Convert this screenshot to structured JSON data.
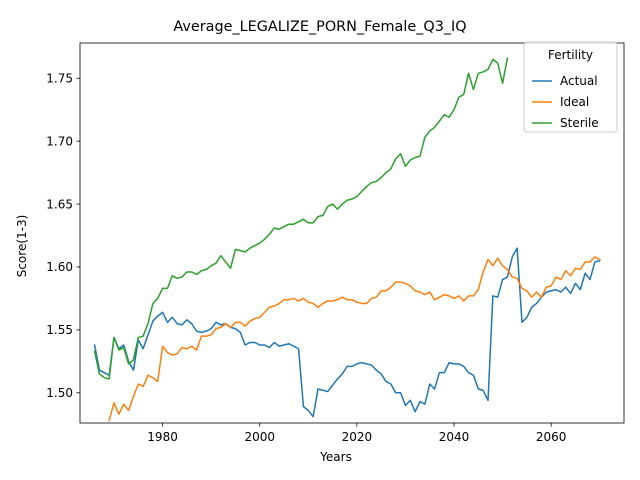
{
  "chart_data": {
    "type": "line",
    "title": "Average_LEGALIZE_PORN_Female_Q3_IQ",
    "xlabel": "Years",
    "ylabel": "Score(1-3)",
    "xlim": [
      1963,
      2075
    ],
    "ylim": [
      1.476,
      1.778
    ],
    "xticks": [
      1980,
      2000,
      2020,
      2040,
      2060
    ],
    "yticks": [
      1.5,
      1.55,
      1.6,
      1.65,
      1.7,
      1.75
    ],
    "ytick_labels": [
      "1.50",
      "1.55",
      "1.60",
      "1.65",
      "1.70",
      "1.75"
    ],
    "grid": false,
    "legend": {
      "title": "Fertility",
      "position": "top-right"
    },
    "series": [
      {
        "name": "Actual",
        "color": "#1f77b4",
        "x": [
          1966,
          1967,
          1969,
          1970,
          1971,
          1972,
          1973,
          1974,
          1975,
          1976,
          1977,
          1978,
          1979,
          1980,
          1981,
          1982,
          1983,
          1984,
          1985,
          1986,
          1987,
          1988,
          1989,
          1990,
          1991,
          1992,
          1993,
          1994,
          1995,
          1996,
          1997,
          1998,
          1999,
          2000,
          2001,
          2002,
          2003,
          2004,
          2005,
          2006,
          2007,
          2008,
          2009,
          2010,
          2011,
          2012,
          2013,
          2014,
          2015,
          2016,
          2017,
          2018,
          2019,
          2020,
          2021,
          2022,
          2023,
          2024,
          2025,
          2026,
          2027,
          2028,
          2029,
          2030,
          2031,
          2032,
          2033,
          2034,
          2035,
          2036,
          2037,
          2038,
          2039,
          2040,
          2041,
          2042,
          2043,
          2044,
          2045,
          2046,
          2047,
          2048,
          2049,
          2050,
          2051,
          2052,
          2053,
          2054,
          2055,
          2056,
          2057,
          2058,
          2059,
          2060,
          2061,
          2062,
          2063,
          2064,
          2065,
          2066,
          2067,
          2068,
          2069,
          2070
        ],
        "y": [
          1.538,
          1.518,
          1.514,
          1.544,
          1.535,
          1.538,
          1.525,
          1.518,
          1.542,
          1.535,
          1.546,
          1.557,
          1.561,
          1.564,
          1.556,
          1.56,
          1.555,
          1.554,
          1.558,
          1.555,
          1.549,
          1.548,
          1.549,
          1.551,
          1.556,
          1.554,
          1.555,
          1.552,
          1.551,
          1.548,
          1.538,
          1.54,
          1.54,
          1.538,
          1.538,
          1.536,
          1.54,
          1.537,
          1.538,
          1.539,
          1.537,
          1.535,
          1.489,
          1.486,
          1.481,
          1.503,
          1.502,
          1.501,
          1.506,
          1.511,
          1.515,
          1.521,
          1.521,
          1.523,
          1.524,
          1.523,
          1.522,
          1.518,
          1.515,
          1.509,
          1.507,
          1.5,
          1.5,
          1.49,
          1.494,
          1.485,
          1.493,
          1.491,
          1.507,
          1.503,
          1.516,
          1.516,
          1.524,
          1.523,
          1.523,
          1.521,
          1.516,
          1.514,
          1.503,
          1.502,
          1.494,
          1.577,
          1.576,
          1.59,
          1.592,
          1.608,
          1.615,
          1.556,
          1.56,
          1.568,
          1.571,
          1.576,
          1.58,
          1.581,
          1.582,
          1.58,
          1.584,
          1.579,
          1.587,
          1.582,
          1.595,
          1.59,
          1.604,
          1.605
        ]
      },
      {
        "name": "Ideal",
        "color": "#ff7f0e",
        "x": [
          1969,
          1970,
          1971,
          1972,
          1973,
          1974,
          1975,
          1976,
          1977,
          1978,
          1979,
          1980,
          1981,
          1982,
          1983,
          1984,
          1985,
          1986,
          1987,
          1988,
          1989,
          1990,
          1991,
          1992,
          1993,
          1994,
          1995,
          1996,
          1997,
          1998,
          1999,
          2000,
          2001,
          2002,
          2003,
          2004,
          2005,
          2006,
          2007,
          2008,
          2009,
          2010,
          2011,
          2012,
          2013,
          2014,
          2015,
          2016,
          2017,
          2018,
          2019,
          2020,
          2021,
          2022,
          2023,
          2024,
          2025,
          2026,
          2027,
          2028,
          2029,
          2030,
          2031,
          2032,
          2033,
          2034,
          2035,
          2036,
          2037,
          2038,
          2039,
          2040,
          2041,
          2042,
          2043,
          2044,
          2045,
          2046,
          2047,
          2048,
          2049,
          2050,
          2051,
          2052,
          2053,
          2054,
          2055,
          2056,
          2057,
          2058,
          2059,
          2060,
          2061,
          2062,
          2063,
          2064,
          2065,
          2066,
          2067,
          2068,
          2069,
          2070
        ],
        "y": [
          1.478,
          1.492,
          1.483,
          1.491,
          1.486,
          1.497,
          1.507,
          1.505,
          1.514,
          1.512,
          1.509,
          1.537,
          1.532,
          1.53,
          1.531,
          1.536,
          1.535,
          1.537,
          1.534,
          1.545,
          1.545,
          1.546,
          1.551,
          1.552,
          1.555,
          1.552,
          1.556,
          1.556,
          1.553,
          1.557,
          1.559,
          1.56,
          1.564,
          1.568,
          1.569,
          1.571,
          1.574,
          1.574,
          1.575,
          1.573,
          1.575,
          1.572,
          1.571,
          1.568,
          1.571,
          1.573,
          1.573,
          1.574,
          1.576,
          1.574,
          1.574,
          1.572,
          1.571,
          1.571,
          1.575,
          1.576,
          1.581,
          1.581,
          1.584,
          1.588,
          1.588,
          1.587,
          1.585,
          1.581,
          1.58,
          1.578,
          1.58,
          1.574,
          1.576,
          1.578,
          1.577,
          1.575,
          1.577,
          1.573,
          1.577,
          1.577,
          1.582,
          1.596,
          1.606,
          1.601,
          1.607,
          1.601,
          1.598,
          1.592,
          1.591,
          1.583,
          1.581,
          1.576,
          1.58,
          1.576,
          1.584,
          1.585,
          1.592,
          1.59,
          1.597,
          1.593,
          1.599,
          1.598,
          1.604,
          1.604,
          1.608,
          1.606
        ]
      },
      {
        "name": "Sterile",
        "color": "#2ca02c",
        "x": [
          1966,
          1967,
          1968,
          1969,
          1970,
          1971,
          1972,
          1973,
          1974,
          1975,
          1976,
          1977,
          1978,
          1979,
          1980,
          1981,
          1982,
          1983,
          1984,
          1985,
          1986,
          1987,
          1988,
          1989,
          1990,
          1991,
          1992,
          1993,
          1994,
          1995,
          1996,
          1997,
          1998,
          1999,
          2000,
          2001,
          2002,
          2003,
          2004,
          2005,
          2006,
          2007,
          2008,
          2009,
          2010,
          2011,
          2012,
          2013,
          2014,
          2015,
          2016,
          2017,
          2018,
          2019,
          2020,
          2021,
          2022,
          2023,
          2024,
          2025,
          2026,
          2027,
          2028,
          2029,
          2030,
          2031,
          2032,
          2033,
          2034,
          2035,
          2036,
          2037,
          2038,
          2039,
          2040,
          2041,
          2042,
          2043,
          2044,
          2045,
          2046,
          2047,
          2048,
          2049,
          2050,
          2051
        ],
        "y": [
          1.533,
          1.515,
          1.512,
          1.511,
          1.544,
          1.534,
          1.536,
          1.523,
          1.526,
          1.544,
          1.545,
          1.555,
          1.571,
          1.575,
          1.583,
          1.583,
          1.593,
          1.591,
          1.592,
          1.596,
          1.596,
          1.594,
          1.597,
          1.598,
          1.601,
          1.603,
          1.609,
          1.604,
          1.599,
          1.614,
          1.613,
          1.612,
          1.615,
          1.617,
          1.619,
          1.622,
          1.626,
          1.631,
          1.63,
          1.632,
          1.634,
          1.634,
          1.636,
          1.638,
          1.635,
          1.635,
          1.64,
          1.641,
          1.648,
          1.65,
          1.646,
          1.65,
          1.653,
          1.654,
          1.656,
          1.66,
          1.664,
          1.667,
          1.668,
          1.671,
          1.675,
          1.678,
          1.686,
          1.69,
          1.68,
          1.685,
          1.687,
          1.688,
          1.703,
          1.708,
          1.711,
          1.716,
          1.721,
          1.719,
          1.725,
          1.735,
          1.737,
          1.754,
          1.741,
          1.754,
          1.755,
          1.757,
          1.765,
          1.762,
          1.746,
          1.766
        ]
      }
    ]
  }
}
